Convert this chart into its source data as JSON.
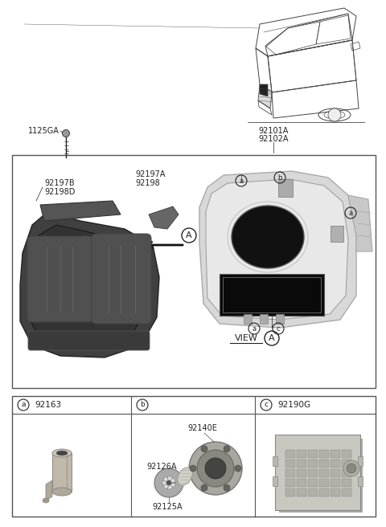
{
  "bg_color": "#ffffff",
  "border_color": "#555555",
  "text_color": "#222222",
  "gray_fill": "#d0d0d0",
  "dark_fill": "#3a3a3a",
  "mid_fill": "#888888",
  "part_numbers": {
    "main1": "92101A",
    "main2": "92102A",
    "bolt": "1125GA",
    "bracket_left_b": "92197B",
    "bracket_left_d": "92198D",
    "bracket_right_a": "92197A",
    "bracket_right": "92198",
    "sub_a": "92163",
    "sub_b_top": "92140E",
    "sub_b_mid": "92126A",
    "sub_b_bot": "92125A",
    "sub_c": "92190G"
  },
  "layout": {
    "fig_w": 4.8,
    "fig_h": 6.56,
    "dpi": 100,
    "xlim": [
      0,
      480
    ],
    "ylim": [
      0,
      656
    ]
  }
}
